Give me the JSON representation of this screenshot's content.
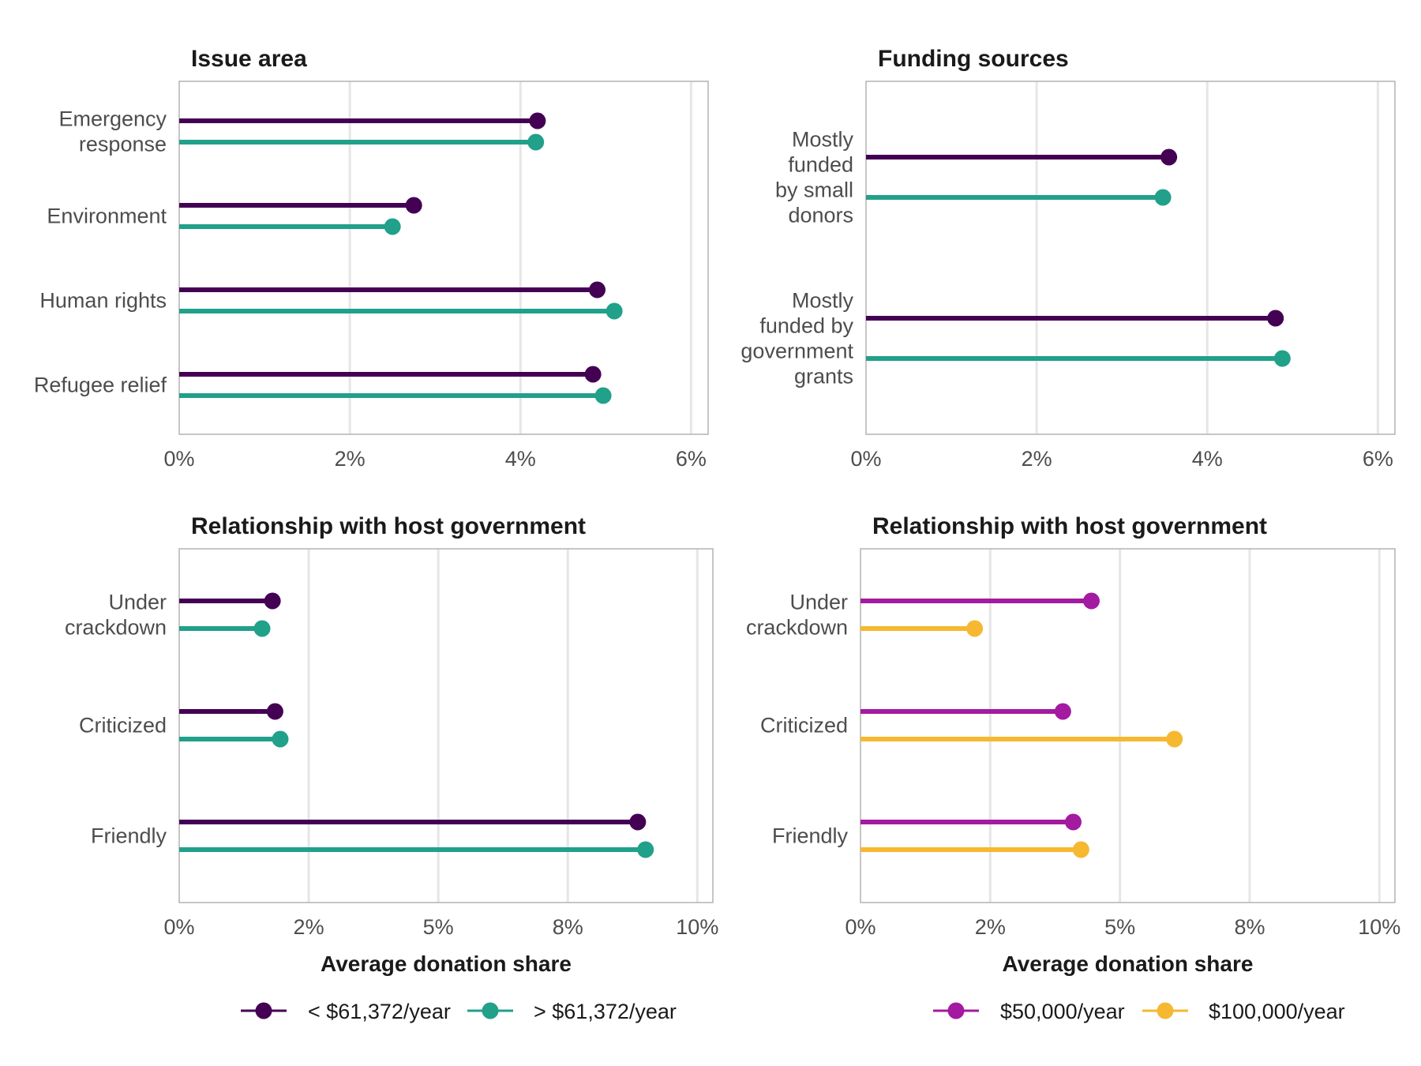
{
  "chart_data": [
    {
      "type": "dot-lollipop",
      "title": "Issue area",
      "categories": [
        "Emergency response",
        "Environment",
        "Human rights",
        "Refugee relief"
      ],
      "category_lines": [
        [
          "Emergency",
          "response"
        ],
        [
          "Environment"
        ],
        [
          "Human rights"
        ],
        [
          "Refugee relief"
        ]
      ],
      "series": [
        {
          "name": "< $61,372/year",
          "color": "#440154",
          "values": [
            4.2,
            2.75,
            4.9,
            4.85
          ]
        },
        {
          "name": "> $61,372/year",
          "color": "#21a08a",
          "values": [
            4.18,
            2.5,
            5.1,
            4.97
          ]
        }
      ],
      "xlim": [
        0,
        6.2
      ],
      "xticks": [
        0,
        2,
        4,
        6
      ],
      "xtick_labels": [
        "0%",
        "2%",
        "4%",
        "6%"
      ],
      "xlabel": "",
      "grid": true
    },
    {
      "type": "dot-lollipop",
      "title": "Funding sources",
      "categories": [
        "Mostly funded by small donors",
        "Mostly funded by government grants"
      ],
      "category_lines": [
        [
          "Mostly",
          "funded",
          "by small",
          "donors"
        ],
        [
          "Mostly",
          "funded by",
          "government",
          "grants"
        ]
      ],
      "series": [
        {
          "name": "< $61,372/year",
          "color": "#440154",
          "values": [
            3.55,
            4.8
          ]
        },
        {
          "name": "> $61,372/year",
          "color": "#21a08a",
          "values": [
            3.48,
            4.88
          ]
        }
      ],
      "xlim": [
        0,
        6.2
      ],
      "xticks": [
        0,
        2,
        4,
        6
      ],
      "xtick_labels": [
        "0%",
        "2%",
        "4%",
        "6%"
      ],
      "xlabel": "",
      "grid": true
    },
    {
      "type": "dot-lollipop",
      "title": "Relationship with host government",
      "categories": [
        "Under crackdown",
        "Criticized",
        "Friendly"
      ],
      "category_lines": [
        [
          "Under",
          "crackdown"
        ],
        [
          "Criticized"
        ],
        [
          "Friendly"
        ]
      ],
      "series": [
        {
          "name": "< $61,372/year",
          "color": "#440154",
          "values": [
            1.8,
            1.85,
            8.85
          ]
        },
        {
          "name": "> $61,372/year",
          "color": "#21a08a",
          "values": [
            1.6,
            1.95,
            9.0
          ]
        }
      ],
      "xlim": [
        0,
        10.3
      ],
      "xticks": [
        0,
        2.5,
        5,
        7.5,
        10
      ],
      "xtick_labels": [
        "0%",
        "2%",
        "5%",
        "8%",
        "10%"
      ],
      "xlabel": "Average donation share",
      "grid": true
    },
    {
      "type": "dot-lollipop",
      "title": "Relationship with host government",
      "categories": [
        "Under crackdown",
        "Criticized",
        "Friendly"
      ],
      "category_lines": [
        [
          "Under",
          "crackdown"
        ],
        [
          "Criticized"
        ],
        [
          "Friendly"
        ]
      ],
      "series": [
        {
          "name": "$50,000/year",
          "color": "#a31ba0",
          "values": [
            4.45,
            3.9,
            4.1
          ]
        },
        {
          "name": "$100,000/year",
          "color": "#f6b830",
          "values": [
            2.2,
            6.05,
            4.25
          ]
        }
      ],
      "xlim": [
        0,
        10.3
      ],
      "xticks": [
        0,
        2.5,
        5,
        7.5,
        10
      ],
      "xtick_labels": [
        "0%",
        "2%",
        "5%",
        "8%",
        "10%"
      ],
      "xlabel": "Average donation share",
      "grid": true
    }
  ],
  "legends": [
    {
      "items": [
        {
          "label": "< $61,372/year",
          "color": "#440154"
        },
        {
          "label": "> $61,372/year",
          "color": "#21a08a"
        }
      ]
    },
    {
      "items": [
        {
          "label": "$50,000/year",
          "color": "#a31ba0"
        },
        {
          "label": "$100,000/year",
          "color": "#f6b830"
        }
      ]
    }
  ]
}
